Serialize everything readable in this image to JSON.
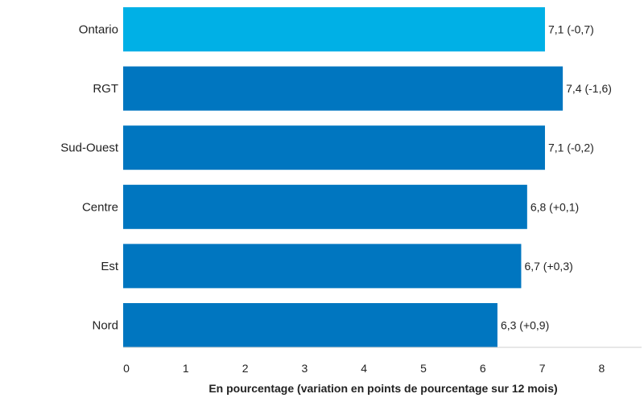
{
  "chart_data": {
    "type": "bar",
    "orientation": "horizontal",
    "categories": [
      "Ontario",
      "RGT",
      "Sud-Ouest",
      "Centre",
      "Est",
      "Nord"
    ],
    "values": [
      7.1,
      7.4,
      7.1,
      6.8,
      6.7,
      6.3
    ],
    "changes": [
      -0.7,
      -1.6,
      -0.2,
      0.1,
      0.3,
      0.9
    ],
    "value_labels": [
      "7,1 (-0,7)",
      "7,4 (-1,6)",
      "7,1 (-0,2)",
      "6,8 (+0,1)",
      "6,7 (+0,3)",
      "6,3 (+0,9)"
    ],
    "bar_colors": [
      "#00B0E6",
      "#0076C0",
      "#0076C0",
      "#0076C0",
      "#0076C0",
      "#0076C0"
    ],
    "xlabel": "En pourcentage (variation en points de pourcentage sur 12 mois)",
    "xlim": [
      0,
      8
    ],
    "x_ticks": [
      "0",
      "1",
      "2",
      "3",
      "4",
      "5",
      "6",
      "7",
      "8"
    ],
    "grid": false
  }
}
